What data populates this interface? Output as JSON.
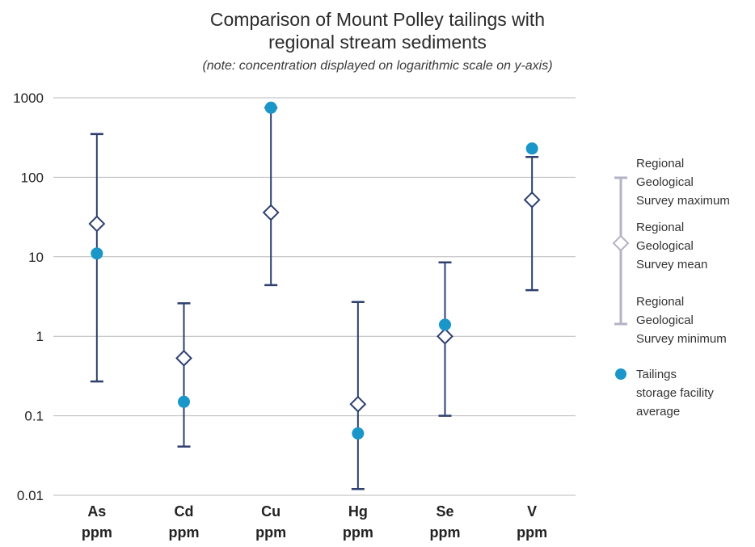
{
  "chart_data": {
    "type": "scatter",
    "title": "Comparison of Mount Polley tailings with regional stream sediments",
    "title_lines": [
      "Comparison of Mount Polley tailings with",
      "regional stream sediments"
    ],
    "subtitle": "(note: concentration displayed on logarithmic scale on y-axis)",
    "y_scale": "log",
    "ylim": [
      0.01,
      1000
    ],
    "y_ticks": [
      "0.01",
      "0.1",
      "1",
      "10",
      "100",
      "1000"
    ],
    "grid": true,
    "legend_position": "right",
    "categories": [
      {
        "element": "As",
        "unit": "ppm"
      },
      {
        "element": "Cd",
        "unit": "ppm"
      },
      {
        "element": "Cu",
        "unit": "ppm"
      },
      {
        "element": "Hg",
        "unit": "ppm"
      },
      {
        "element": "Se",
        "unit": "ppm"
      },
      {
        "element": "V",
        "unit": "ppm"
      }
    ],
    "series": [
      {
        "name": "Regional Geological Survey maximum",
        "values": [
          350,
          2.6,
          750,
          2.7,
          8.5,
          180
        ]
      },
      {
        "name": "Regional Geological Survey mean",
        "values": [
          26,
          0.53,
          36,
          0.14,
          1.0,
          52
        ]
      },
      {
        "name": "Regional Geological Survey minimum",
        "values": [
          0.27,
          0.041,
          4.4,
          0.012,
          0.1,
          3.8
        ]
      },
      {
        "name": "Tailings storage facility average",
        "values": [
          11,
          0.15,
          750,
          0.06,
          1.4,
          230
        ]
      }
    ],
    "legend": {
      "max_lines": [
        "Regional",
        "Geological",
        "Survey maximum"
      ],
      "mean_lines": [
        "Regional",
        "Geological",
        "Survey mean"
      ],
      "min_lines": [
        "Regional",
        "Geological",
        "Survey minimum"
      ],
      "tailings_lines": [
        "Tailings",
        "storage facility",
        "average"
      ]
    },
    "colors": {
      "range_line": "#2e3f6e",
      "tailings_dot": "#1a96c8",
      "grid": "#b8b8b8",
      "legend_range": "#b3b3c6"
    }
  }
}
